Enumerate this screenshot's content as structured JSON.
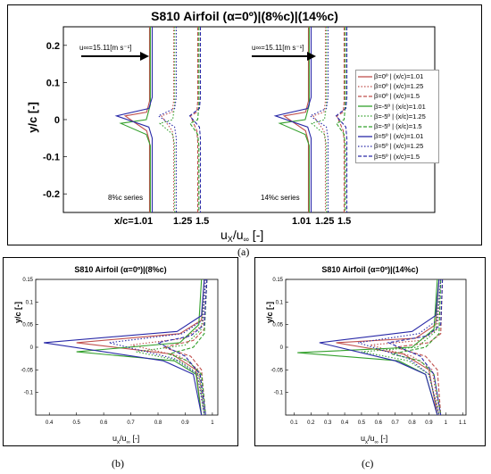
{
  "panel_labels": {
    "a": "(a)",
    "b": "(b)",
    "c": "(c)"
  },
  "panelA": {
    "title": "S810 Airfoil (α=0º)|(8%c)|(14%c)",
    "ylabel": "y/c [-]",
    "xlabel": "u",
    "xlabel_sub1": "X",
    "xlabel_mid": "/u",
    "xlabel_sub2": "∞",
    "xlabel_end": " [-]",
    "freestream1": "u∞=15.11[m s⁻¹]",
    "freestream2": "u∞=15.11[m s⁻¹]",
    "series_left": "8%c series",
    "series_right": "14%c series",
    "xticks_left": [
      "x/c=1.01",
      "1.25",
      "1.5"
    ],
    "xticks_right": [
      "1.01",
      "1.25",
      "1.5"
    ],
    "yticks": [
      "0.2",
      "0.1",
      "0",
      "-0.1",
      "-0.2"
    ],
    "legend": [
      {
        "label": "β=0º | (x/c)=1.01",
        "color": "#c0504d",
        "dash": "solid"
      },
      {
        "label": "β=0º | (x/c)=1.25",
        "color": "#c0504d",
        "dash": "dot"
      },
      {
        "label": "β=0º | (x/c)=1.5",
        "color": "#c0504d",
        "dash": "dash"
      },
      {
        "label": "β=-5º | (x/c)=1.01",
        "color": "#33a02c",
        "dash": "solid"
      },
      {
        "label": "β=-5º | (x/c)=1.25",
        "color": "#33a02c",
        "dash": "dot"
      },
      {
        "label": "β=-5º | (x/c)=1.5",
        "color": "#33a02c",
        "dash": "dash"
      },
      {
        "label": "β=5º | (x/c)=1.01",
        "color": "#2a2aa8",
        "dash": "solid"
      },
      {
        "label": "β=5º | (x/c)=1.25",
        "color": "#2a2aa8",
        "dash": "dot"
      },
      {
        "label": "β=5º | (x/c)=1.5",
        "color": "#2a2aa8",
        "dash": "dash"
      }
    ]
  },
  "panelB": {
    "title": "S810 Airfoil (α=0º)|(8%c)",
    "ylabel": "y/c [-]",
    "xlabel": "u",
    "xlabel_sub1": "x",
    "xlabel_mid": "/u",
    "xlabel_sub2": "∞",
    "xlabel_end": " [-]",
    "xticks": [
      "0.4",
      "0.5",
      "0.6",
      "0.7",
      "0.8",
      "0.9",
      "1"
    ],
    "yticks": [
      "0.15",
      "0.1",
      "0.05",
      "0",
      "-0.05",
      "-0.1"
    ]
  },
  "panelC": {
    "title": "S810 Airfoil (α=0º)|(14%c)",
    "ylabel": "y/c [-]",
    "xlabel": "u",
    "xlabel_sub1": "x",
    "xlabel_mid": "/u",
    "xlabel_sub2": "∞",
    "xlabel_end": " [-]",
    "xticks": [
      "0.1",
      "0.2",
      "0.3",
      "0.4",
      "0.5",
      "0.6",
      "0.7",
      "0.8",
      "0.9",
      "1",
      "1.1"
    ],
    "yticks": [
      "0.15",
      "0.1",
      "0.05",
      "0",
      "-0.05",
      "-0.1"
    ]
  },
  "chart_data": [
    {
      "type": "line",
      "title": "S810 Airfoil (α=0º)|(8%c)|(14%c)",
      "ylabel": "y/c [-]",
      "ylim": [
        -0.25,
        0.25
      ],
      "x_stations": [
        "1.01",
        "1.25",
        "1.5"
      ],
      "series": [
        {
          "name": "β=0º | (x/c)=1.01",
          "x": [
            0.98,
            0.98,
            0.93,
            0.55,
            0.93,
            0.98,
            0.98
          ],
          "y": [
            0.25,
            0.05,
            0.02,
            0.01,
            -0.03,
            -0.06,
            -0.25
          ]
        },
        {
          "name": "β=-5º | (x/c)=1.01",
          "x": [
            0.97,
            0.97,
            0.9,
            0.45,
            0.9,
            0.97,
            0.97
          ],
          "y": [
            0.25,
            0.04,
            0.0,
            -0.01,
            -0.04,
            -0.07,
            -0.25
          ]
        },
        {
          "name": "β=5º | (x/c)=1.01",
          "x": [
            0.98,
            0.98,
            0.92,
            0.35,
            0.92,
            0.98,
            0.98
          ],
          "y": [
            0.25,
            0.06,
            0.03,
            0.01,
            -0.02,
            -0.05,
            -0.25
          ]
        }
      ]
    },
    {
      "type": "line",
      "title": "S810 Airfoil (α=0º)|(8%c)",
      "xlim": [
        0.35,
        1.02
      ],
      "ylim": [
        -0.15,
        0.15
      ],
      "series": [
        {
          "name": "β=0º | (x/c)=1.01",
          "x": [
            0.97,
            0.96,
            0.88,
            0.5,
            0.85,
            0.94,
            0.96
          ],
          "y": [
            0.15,
            0.06,
            0.03,
            0.01,
            -0.015,
            -0.05,
            -0.15
          ]
        },
        {
          "name": "β=0º | (x/c)=1.25",
          "x": [
            0.975,
            0.965,
            0.9,
            0.7,
            0.88,
            0.95,
            0.97
          ],
          "y": [
            0.15,
            0.05,
            0.02,
            0.005,
            -0.02,
            -0.05,
            -0.15
          ]
        },
        {
          "name": "β=0º | (x/c)=1.5",
          "x": [
            0.98,
            0.97,
            0.93,
            0.82,
            0.92,
            0.96,
            0.975
          ],
          "y": [
            0.15,
            0.04,
            0.015,
            0.0,
            -0.02,
            -0.05,
            -0.15
          ]
        },
        {
          "name": "β=-5º | (x/c)=1.01",
          "x": [
            0.96,
            0.95,
            0.88,
            0.5,
            0.86,
            0.94,
            0.96
          ],
          "y": [
            0.15,
            0.05,
            0.01,
            -0.01,
            -0.03,
            -0.06,
            -0.15
          ]
        },
        {
          "name": "β=-5º | (x/c)=1.25",
          "x": [
            0.97,
            0.96,
            0.9,
            0.72,
            0.88,
            0.95,
            0.97
          ],
          "y": [
            0.15,
            0.04,
            0.005,
            -0.01,
            -0.03,
            -0.06,
            -0.15
          ]
        },
        {
          "name": "β=-5º | (x/c)=1.5",
          "x": [
            0.98,
            0.97,
            0.93,
            0.84,
            0.91,
            0.96,
            0.975
          ],
          "y": [
            0.15,
            0.03,
            0.0,
            -0.015,
            -0.03,
            -0.06,
            -0.15
          ]
        },
        {
          "name": "β=5º | (x/c)=1.01",
          "x": [
            0.97,
            0.96,
            0.87,
            0.38,
            0.82,
            0.93,
            0.96
          ],
          "y": [
            0.15,
            0.07,
            0.035,
            0.01,
            -0.03,
            -0.06,
            -0.15
          ]
        },
        {
          "name": "β=5º | (x/c)=1.25",
          "x": [
            0.975,
            0.965,
            0.89,
            0.62,
            0.86,
            0.945,
            0.97
          ],
          "y": [
            0.15,
            0.06,
            0.03,
            0.01,
            -0.025,
            -0.06,
            -0.15
          ]
        },
        {
          "name": "β=5º | (x/c)=1.5",
          "x": [
            0.98,
            0.97,
            0.92,
            0.8,
            0.9,
            0.955,
            0.975
          ],
          "y": [
            0.15,
            0.05,
            0.025,
            0.01,
            -0.02,
            -0.06,
            -0.15
          ]
        }
      ]
    },
    {
      "type": "line",
      "title": "S810 Airfoil (α=0º)|(14%c)",
      "xlim": [
        0.05,
        1.12
      ],
      "ylim": [
        -0.15,
        0.15
      ],
      "series": [
        {
          "name": "β=0º | (x/c)=1.01",
          "x": [
            0.96,
            0.94,
            0.82,
            0.35,
            0.75,
            0.9,
            0.95
          ],
          "y": [
            0.15,
            0.05,
            0.02,
            0.01,
            -0.015,
            -0.05,
            -0.15
          ]
        },
        {
          "name": "β=0º | (x/c)=1.25",
          "x": [
            0.97,
            0.95,
            0.85,
            0.55,
            0.8,
            0.92,
            0.96
          ],
          "y": [
            0.15,
            0.04,
            0.015,
            0.005,
            -0.02,
            -0.05,
            -0.15
          ]
        },
        {
          "name": "β=0º | (x/c)=1.5",
          "x": [
            0.98,
            0.97,
            0.9,
            0.7,
            0.88,
            0.95,
            0.97
          ],
          "y": [
            0.15,
            0.03,
            0.01,
            0.0,
            -0.02,
            -0.05,
            -0.15
          ]
        },
        {
          "name": "β=-5º | (x/c)=1.01",
          "x": [
            0.95,
            0.93,
            0.8,
            0.12,
            0.72,
            0.88,
            0.95
          ],
          "y": [
            0.15,
            0.04,
            0.0,
            -0.012,
            -0.03,
            -0.06,
            -0.15
          ]
        },
        {
          "name": "β=-5º | (x/c)=1.25",
          "x": [
            0.96,
            0.94,
            0.83,
            0.5,
            0.78,
            0.9,
            0.96
          ],
          "y": [
            0.15,
            0.035,
            0.0,
            -0.01,
            -0.03,
            -0.06,
            -0.15
          ]
        },
        {
          "name": "β=-5º | (x/c)=1.5",
          "x": [
            0.97,
            0.96,
            0.88,
            0.68,
            0.85,
            0.93,
            0.97
          ],
          "y": [
            0.15,
            0.03,
            0.0,
            -0.015,
            -0.03,
            -0.06,
            -0.15
          ]
        },
        {
          "name": "β=5º | (x/c)=1.01",
          "x": [
            0.96,
            0.94,
            0.8,
            0.25,
            0.7,
            0.88,
            0.95
          ],
          "y": [
            0.15,
            0.07,
            0.035,
            0.01,
            -0.03,
            -0.06,
            -0.15
          ]
        },
        {
          "name": "β=5º | (x/c)=1.25",
          "x": [
            0.97,
            0.95,
            0.84,
            0.48,
            0.78,
            0.9,
            0.96
          ],
          "y": [
            0.15,
            0.06,
            0.03,
            0.01,
            -0.025,
            -0.06,
            -0.15
          ]
        },
        {
          "name": "β=5º | (x/c)=1.5",
          "x": [
            0.98,
            0.97,
            0.89,
            0.66,
            0.85,
            0.93,
            0.97
          ],
          "y": [
            0.15,
            0.05,
            0.025,
            0.01,
            -0.02,
            -0.06,
            -0.15
          ]
        }
      ]
    }
  ]
}
